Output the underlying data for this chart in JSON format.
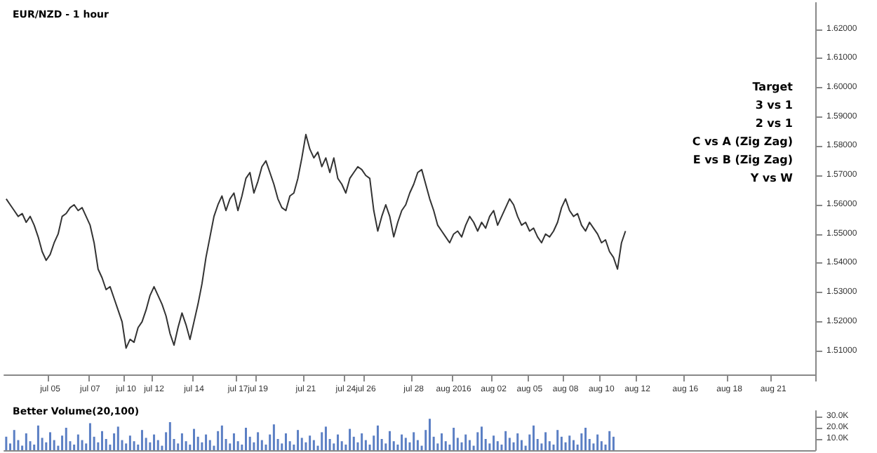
{
  "chart_data": [
    {
      "type": "line",
      "title": "EUR/NZD - 1 hour",
      "categories": [
        null,
        null,
        null,
        null,
        null,
        null,
        null,
        null,
        null,
        null,
        null,
        "jul 05",
        null,
        null,
        null,
        null,
        null,
        null,
        null,
        null,
        null,
        "jul 07",
        null,
        null,
        null,
        null,
        null,
        null,
        null,
        null,
        "jul 10",
        null,
        null,
        null,
        null,
        null,
        null,
        "jul 12",
        null,
        null,
        null,
        null,
        null,
        null,
        null,
        null,
        null,
        "jul 14",
        null,
        null,
        null,
        null,
        null,
        null,
        null,
        null,
        null,
        null,
        "jul 17",
        null,
        null,
        null,
        null,
        "jul 19",
        null,
        null,
        null,
        null,
        null,
        null,
        null,
        null,
        null,
        null,
        null,
        "jul 21",
        null,
        null,
        null,
        null,
        null,
        null,
        null,
        null,
        null,
        "jul 24",
        null,
        null,
        null,
        null,
        "jul 26",
        null,
        null,
        null,
        null,
        null,
        null,
        null,
        null,
        null,
        null,
        null,
        "jul 28",
        null,
        null,
        null,
        null,
        null,
        null,
        null,
        null,
        null,
        "aug 2016",
        null,
        null,
        null,
        null,
        null,
        null,
        null,
        null,
        null,
        "aug 02",
        null,
        null,
        null,
        null,
        null,
        null,
        null,
        null,
        "aug 05",
        null,
        null,
        null,
        null,
        null,
        null,
        null,
        null,
        "aug 08",
        null,
        null,
        null,
        null,
        null,
        null,
        null,
        null,
        "aug 10",
        null,
        null,
        null,
        null,
        null,
        null,
        null,
        null,
        "aug 12",
        null,
        null,
        null,
        null,
        null,
        null,
        null,
        null,
        null,
        null,
        null,
        "aug 16",
        null,
        null,
        null,
        null,
        null,
        null,
        null,
        null,
        null,
        null,
        "aug 18",
        null,
        null,
        null,
        null,
        null,
        null,
        null,
        null,
        null,
        null,
        "aug 21",
        null,
        null,
        null,
        null,
        null,
        null,
        null,
        null,
        null,
        null
      ],
      "series": [
        {
          "color": "#333333",
          "values": [
            1.562,
            1.56,
            1.558,
            1.556,
            1.557,
            1.554,
            1.556,
            1.553,
            1.549,
            1.544,
            1.541,
            1.543,
            1.547,
            1.55,
            1.556,
            1.557,
            1.559,
            1.56,
            1.558,
            1.559,
            1.556,
            1.553,
            1.547,
            1.538,
            1.535,
            1.531,
            1.532,
            1.528,
            1.524,
            1.52,
            1.511,
            1.514,
            1.513,
            1.518,
            1.52,
            1.524,
            1.529,
            1.532,
            1.529,
            1.526,
            1.522,
            1.516,
            1.512,
            1.518,
            1.523,
            1.519,
            1.514,
            1.52,
            1.526,
            1.533,
            1.542,
            1.549,
            1.556,
            1.56,
            1.563,
            1.558,
            1.562,
            1.564,
            1.558,
            1.563,
            1.569,
            1.571,
            1.564,
            1.568,
            1.573,
            1.575,
            1.571,
            1.567,
            1.562,
            1.559,
            1.558,
            1.563,
            1.564,
            1.569,
            1.576,
            1.584,
            1.579,
            1.576,
            1.578,
            1.573,
            1.576,
            1.571,
            1.576,
            1.569,
            1.567,
            1.564,
            1.569,
            1.571,
            1.573,
            1.572,
            1.57,
            1.569,
            1.558,
            1.551,
            1.556,
            1.56,
            1.556,
            1.549,
            1.554,
            1.558,
            1.56,
            1.564,
            1.567,
            1.571,
            1.572,
            1.567,
            1.562,
            1.558,
            1.553,
            1.551,
            1.549,
            1.547,
            1.55,
            1.551,
            1.549,
            1.553,
            1.556,
            1.554,
            1.551,
            1.554,
            1.552,
            1.556,
            1.558,
            1.553,
            1.556,
            1.559,
            1.562,
            1.56,
            1.556,
            1.553,
            1.554,
            1.551,
            1.552,
            1.549,
            1.547,
            1.55,
            1.549,
            1.551,
            1.554,
            1.559,
            1.562,
            1.558,
            1.556,
            1.557,
            1.553,
            1.551,
            1.554,
            1.552,
            1.55,
            1.547,
            1.548,
            1.544,
            1.542,
            1.538,
            1.547,
            1.551,
            null,
            null,
            null,
            null,
            null,
            null,
            null,
            null,
            null,
            null,
            null,
            null,
            null,
            null,
            null,
            null,
            null,
            null,
            null,
            null,
            null,
            null,
            null,
            null,
            null,
            null,
            null,
            null,
            null,
            null,
            null,
            null,
            null,
            null,
            null,
            null,
            null,
            null,
            null,
            null,
            null,
            null,
            null,
            null,
            null,
            null,
            null
          ]
        }
      ],
      "ylim": [
        1.502,
        1.629
      ],
      "yticks": [
        {
          "value": 1.51,
          "label": "1.51000"
        },
        {
          "value": 1.52,
          "label": "1.52000"
        },
        {
          "value": 1.53,
          "label": "1.53000"
        },
        {
          "value": 1.54,
          "label": "1.54000"
        },
        {
          "value": 1.55,
          "label": "1.55000"
        },
        {
          "value": 1.56,
          "label": "1.56000"
        },
        {
          "value": 1.57,
          "label": "1.57000"
        },
        {
          "value": 1.58,
          "label": "1.58000"
        },
        {
          "value": 1.59,
          "label": "1.59000"
        },
        {
          "value": 1.6,
          "label": "1.60000"
        },
        {
          "value": 1.61,
          "label": "1.61000"
        },
        {
          "value": 1.62,
          "label": "1.62000"
        }
      ],
      "annotations": [
        "Target",
        "3 vs 1",
        "2 vs 1",
        "C vs A (Zig Zag)",
        "E vs B (Zig Zag)",
        "Y vs W"
      ]
    },
    {
      "type": "bar",
      "title": "Better Volume(20,100)",
      "categories": [
        null,
        null,
        null,
        null,
        null,
        null,
        null,
        null,
        null,
        null,
        null,
        null,
        null,
        null,
        null,
        null,
        null,
        null,
        null,
        null,
        null,
        null,
        null,
        null,
        null,
        null,
        null,
        null,
        null,
        null,
        null,
        null,
        null,
        null,
        null,
        null,
        null,
        null,
        null,
        null,
        null,
        null,
        null,
        null,
        null,
        null,
        null,
        null,
        null,
        null,
        null,
        null,
        null,
        null,
        null,
        null,
        null,
        null,
        null,
        null,
        null,
        null,
        null,
        null,
        null,
        null,
        null,
        null,
        null,
        null,
        null,
        null,
        null,
        null,
        null,
        null,
        null,
        null,
        null,
        null,
        null,
        null,
        null,
        null,
        null,
        null,
        null,
        null,
        null,
        null,
        null,
        null,
        null,
        null,
        null,
        null,
        null,
        null,
        null,
        null,
        null,
        null,
        null,
        null,
        null,
        null,
        null,
        null,
        null,
        null,
        null,
        null,
        null,
        null,
        null,
        null,
        null,
        null,
        null,
        null,
        null,
        null,
        null,
        null,
        null,
        null,
        null,
        null,
        null,
        null,
        null,
        null,
        null,
        null,
        null,
        null,
        null,
        null,
        null,
        null,
        null,
        null,
        null,
        null,
        null,
        null,
        null,
        null,
        null,
        null,
        null,
        null,
        null,
        null,
        null,
        null,
        null,
        null,
        null,
        null,
        null,
        null,
        null,
        null,
        null,
        null,
        null,
        null,
        null,
        null,
        null,
        null,
        null,
        null,
        null,
        null,
        null,
        null,
        null,
        null,
        null,
        null,
        null,
        null,
        null,
        null,
        null,
        null,
        null,
        null,
        null,
        null,
        null,
        null,
        null,
        null,
        null,
        null,
        null,
        null,
        null,
        null,
        null
      ],
      "series": [
        {
          "color": "#5b7fc4",
          "values": [
            12000,
            6000,
            18000,
            9000,
            4000,
            15000,
            8000,
            5000,
            22000,
            11000,
            7000,
            16000,
            9000,
            4000,
            13000,
            20000,
            8000,
            5000,
            14000,
            9000,
            6000,
            24000,
            12000,
            7000,
            17000,
            10000,
            5000,
            15000,
            21000,
            9000,
            6000,
            13000,
            8000,
            5000,
            18000,
            11000,
            7000,
            14000,
            9000,
            4000,
            16000,
            25000,
            10000,
            6000,
            15000,
            8000,
            5000,
            19000,
            12000,
            7000,
            14000,
            9000,
            4000,
            17000,
            22000,
            10000,
            6000,
            15000,
            8000,
            5000,
            20000,
            12000,
            7000,
            16000,
            9000,
            5000,
            14000,
            23000,
            10000,
            6000,
            15000,
            8000,
            5000,
            18000,
            11000,
            7000,
            13000,
            9000,
            4000,
            16000,
            21000,
            10000,
            6000,
            14000,
            8000,
            5000,
            19000,
            12000,
            7000,
            15000,
            9000,
            5000,
            13000,
            22000,
            10000,
            6000,
            17000,
            8000,
            5000,
            14000,
            11000,
            7000,
            16000,
            9000,
            4000,
            18000,
            28000,
            12000,
            6000,
            15000,
            8000,
            5000,
            20000,
            11000,
            7000,
            14000,
            9000,
            4000,
            16000,
            21000,
            10000,
            6000,
            13000,
            8000,
            5000,
            17000,
            11000,
            7000,
            15000,
            9000,
            4000,
            14000,
            22000,
            10000,
            6000,
            16000,
            8000,
            5000,
            18000,
            12000,
            7000,
            13000,
            9000,
            5000,
            15000,
            20000,
            10000,
            6000,
            14000,
            8000,
            5000,
            17000,
            12000,
            null,
            null,
            null,
            null,
            null,
            null,
            null,
            null,
            null,
            null,
            null,
            null,
            null,
            null,
            null,
            null,
            null,
            null,
            null,
            null,
            null,
            null,
            null,
            null,
            null,
            null,
            null,
            null,
            null,
            null,
            null,
            null,
            null,
            null,
            null,
            null,
            null,
            null,
            null,
            null,
            null,
            null,
            null,
            null,
            null,
            null,
            null,
            null,
            null,
            null
          ]
        }
      ],
      "ylim": [
        0,
        35000
      ],
      "yticks": [
        {
          "value": 10000,
          "label": "10.0K"
        },
        {
          "value": 20000,
          "label": "20.0K"
        },
        {
          "value": 30000,
          "label": "30.0K"
        }
      ],
      "tick_labels": "y"
    }
  ]
}
